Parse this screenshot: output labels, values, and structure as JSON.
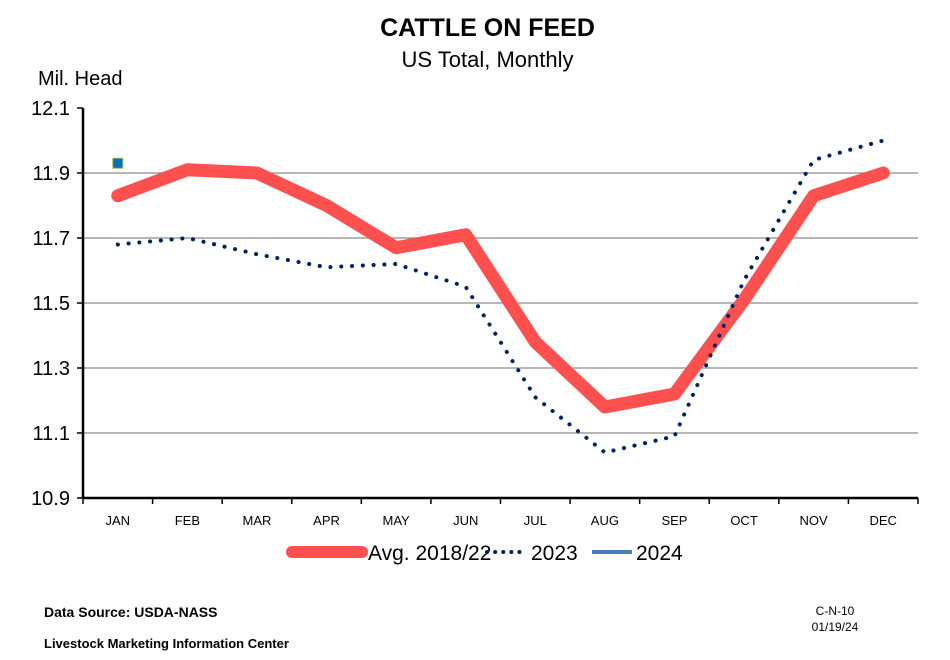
{
  "chart_data": {
    "type": "line",
    "title": "CATTLE ON FEED",
    "subtitle": "US Total, Monthly",
    "ylabel": "Mil. Head",
    "xlabel": "",
    "categories": [
      "JAN",
      "FEB",
      "MAR",
      "APR",
      "MAY",
      "JUN",
      "JUL",
      "AUG",
      "SEP",
      "OCT",
      "NOV",
      "DEC"
    ],
    "ylim": [
      10.9,
      12.1
    ],
    "yticks": [
      "12.1",
      "11.9",
      "11.7",
      "11.5",
      "11.3",
      "11.1",
      "10.9"
    ],
    "grid": true,
    "legend_position": "bottom",
    "series": [
      {
        "name": "Avg. 2018/22",
        "color": "#FF5050",
        "style": "solid-thick",
        "values": [
          11.83,
          11.91,
          11.9,
          11.8,
          11.67,
          11.71,
          11.38,
          11.18,
          11.22,
          11.51,
          11.83,
          11.9
        ]
      },
      {
        "name": "2023",
        "color": "#002060",
        "style": "dotted",
        "values": [
          11.68,
          11.7,
          11.65,
          11.61,
          11.62,
          11.55,
          11.21,
          11.04,
          11.09,
          11.57,
          11.94,
          12.0
        ]
      },
      {
        "name": "2024",
        "color": "#0070C0",
        "style": "marker",
        "values": [
          11.93,
          null,
          null,
          null,
          null,
          null,
          null,
          null,
          null,
          null,
          null,
          null
        ]
      }
    ]
  },
  "footer": {
    "source": "Data Source:  USDA-NASS",
    "org": "Livestock Marketing Information Center",
    "code": "C-N-10",
    "date": "01/19/24"
  }
}
